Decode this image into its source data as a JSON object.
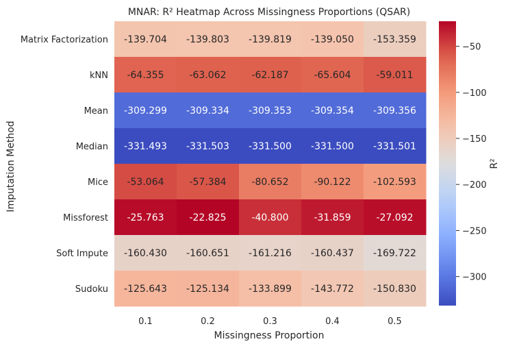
{
  "chart_data": {
    "type": "heatmap",
    "title": "MNAR: R² Heatmap Across Missingness Proportions (QSAR)",
    "xlabel": "Missingness Proportion",
    "ylabel": "Imputation Method",
    "x_categories": [
      "0.1",
      "0.2",
      "0.3",
      "0.4",
      "0.5"
    ],
    "y_categories": [
      "Matrix Factorization",
      "kNN",
      "Mean",
      "Median",
      "Mice",
      "Missforest",
      "Soft Impute",
      "Sudoku"
    ],
    "values": [
      [
        -139.704,
        -139.803,
        -139.819,
        -139.05,
        -153.359
      ],
      [
        -64.355,
        -63.062,
        -62.187,
        -65.604,
        -59.011
      ],
      [
        -309.299,
        -309.334,
        -309.353,
        -309.354,
        -309.356
      ],
      [
        -331.493,
        -331.503,
        -331.5,
        -331.5,
        -331.501
      ],
      [
        -53.064,
        -57.384,
        -80.652,
        -90.122,
        -102.593
      ],
      [
        -25.763,
        -22.825,
        -40.8,
        -31.859,
        -27.092
      ],
      [
        -160.43,
        -160.651,
        -161.216,
        -160.437,
        -169.722
      ],
      [
        -125.643,
        -125.134,
        -133.899,
        -143.772,
        -150.83
      ]
    ],
    "value_labels": [
      [
        "-139.704",
        "-139.803",
        "-139.819",
        "-139.050",
        "-153.359"
      ],
      [
        "-64.355",
        "-63.062",
        "-62.187",
        "-65.604",
        "-59.011"
      ],
      [
        "-309.299",
        "-309.334",
        "-309.353",
        "-309.354",
        "-309.356"
      ],
      [
        "-331.493",
        "-331.503",
        "-331.500",
        "-331.500",
        "-331.501"
      ],
      [
        "-53.064",
        "-57.384",
        "-80.652",
        "-90.122",
        "-102.593"
      ],
      [
        "-25.763",
        "-22.825",
        "-40.800",
        "-31.859",
        "-27.092"
      ],
      [
        "-160.430",
        "-160.651",
        "-161.216",
        "-160.437",
        "-169.722"
      ],
      [
        "-125.643",
        "-125.134",
        "-133.899",
        "-143.772",
        "-150.830"
      ]
    ],
    "colormap": "coolwarm",
    "color_range": [
      -331.503,
      -22.825
    ],
    "colorbar": {
      "label": "R²",
      "ticks": [
        -50,
        -100,
        -150,
        -200,
        -250,
        -300
      ],
      "tick_labels": [
        "−50",
        "−100",
        "−150",
        "−200",
        "−250",
        "−300"
      ]
    },
    "grid": false,
    "legend": "colorbar-right"
  }
}
